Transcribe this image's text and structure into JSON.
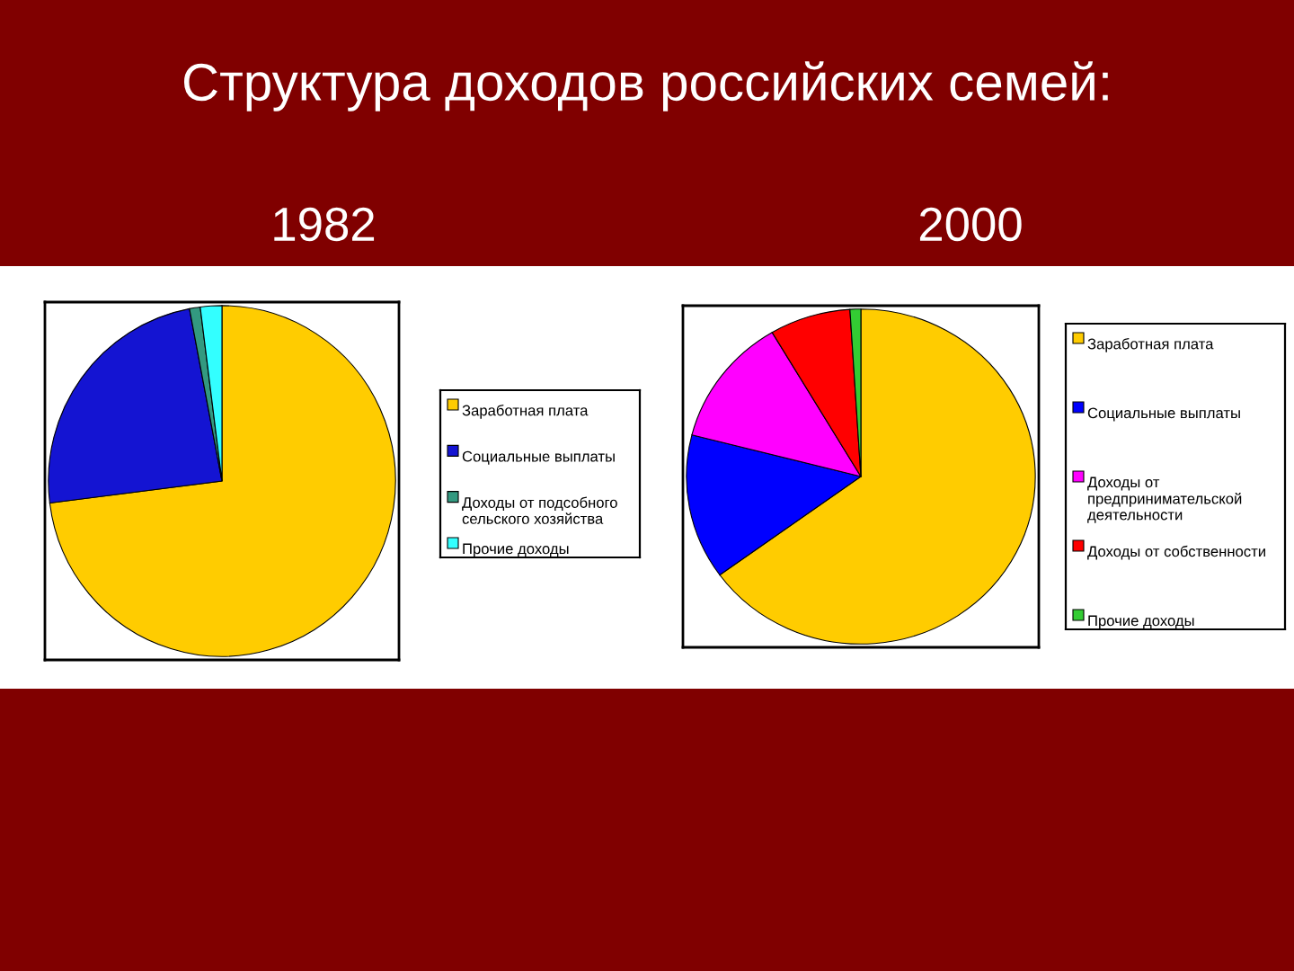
{
  "chart_data": [
    {
      "type": "pie",
      "title": "1982",
      "annotations": [
        "Структура доходов российских семей:"
      ],
      "legend": "right",
      "categories": [
        "Заработная плата",
        "Социальные выплаты",
        "Доходы от подсобного сельского хозяйства",
        "Прочие доходы"
      ],
      "values": [
        73,
        24,
        1,
        2
      ],
      "colors": [
        "#ffcc00",
        "#1414d2",
        "#339980",
        "#33ffff"
      ]
    },
    {
      "type": "pie",
      "title": "2000",
      "legend": "right",
      "categories": [
        "Заработная плата",
        "Социальные выплаты",
        "Доходы от предпринимательской деятельности",
        "Доходы от собственности",
        "Прочие доходы"
      ],
      "values": [
        65,
        14,
        12.5,
        7.5,
        1
      ],
      "colors": [
        "#ffcc00",
        "#0000ff",
        "#ff00ff",
        "#ff0000",
        "#33cc33"
      ]
    }
  ]
}
